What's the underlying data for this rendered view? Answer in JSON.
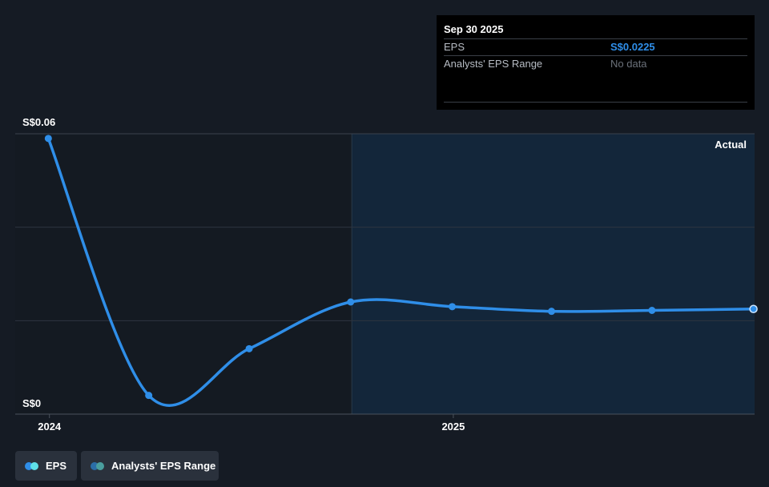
{
  "tooltip": {
    "date": "Sep 30 2025",
    "rows": [
      {
        "label": "EPS",
        "value": "S$0.0225"
      },
      {
        "label": "Analysts' EPS Range",
        "value": "No data"
      }
    ]
  },
  "chart_data": {
    "type": "line",
    "region_label": "Actual",
    "y_tick_labels": [
      "S$0.06",
      "S$0"
    ],
    "ylim": [
      0,
      0.06
    ],
    "x_tick_labels": [
      "2024",
      "2025"
    ],
    "x_ticks": [
      "2024-01-01",
      "2025-01-01"
    ],
    "xlim": [
      "2023-12-01",
      "2025-10-01"
    ],
    "forecast_start": "2024-10-01",
    "series": [
      {
        "name": "EPS",
        "color": "#2f8ee8",
        "x": [
          "2023-12-31",
          "2024-03-31",
          "2024-06-30",
          "2024-09-30",
          "2024-12-31",
          "2025-03-31",
          "2025-06-30",
          "2025-09-30"
        ],
        "values": [
          0.059,
          0.004,
          0.014,
          0.024,
          0.023,
          0.022,
          0.0222,
          0.0225
        ]
      }
    ],
    "grid": true
  },
  "legend": [
    {
      "label": "EPS",
      "colors": [
        "#2f8ee8",
        "#5fe0e8"
      ]
    },
    {
      "label": "Analysts' EPS Range",
      "colors": [
        "#2b6ea8",
        "#4a9e9e"
      ]
    }
  ]
}
